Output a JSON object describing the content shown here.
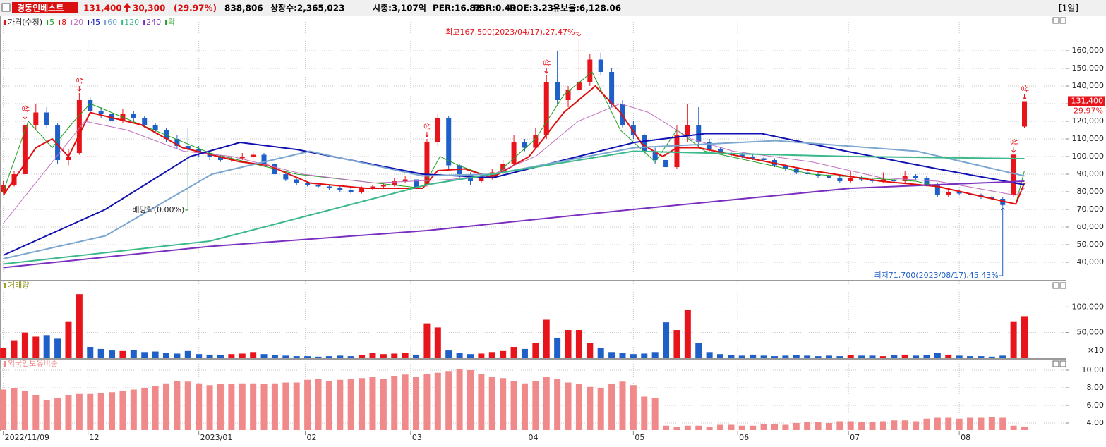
{
  "header": {
    "name": "경동인베스트",
    "price": "131,400",
    "change": "30,300",
    "change_pct": "(29.97%)",
    "volume": "838,806",
    "listed": "상장수:2,365,023",
    "cap": "시총:3,107억",
    "per": "PER:16.82",
    "pbr": "PBR:0.49",
    "roe": "ROE:3.23",
    "reserve": "유보율:6,128.06",
    "period": "[1일]"
  },
  "chart_data": [
    {
      "type": "candlestick",
      "legend_label": "가격(수정)",
      "ex_dividend_label": "락",
      "up_color": "#e8141c",
      "down_color": "#1f5fc8",
      "xlim": [
        -0.3,
        97.8
      ],
      "xticks": [
        {
          "value": 0,
          "label": "2022/11/09"
        },
        {
          "value": 7.8,
          "label": "12"
        },
        {
          "value": 18,
          "label": "2023/01"
        },
        {
          "value": 27.8,
          "label": "02"
        },
        {
          "value": 37.5,
          "label": "03"
        },
        {
          "value": 48.2,
          "label": "04"
        },
        {
          "value": 58,
          "label": "05"
        },
        {
          "value": 67.6,
          "label": "06"
        },
        {
          "value": 77.8,
          "label": "07"
        },
        {
          "value": 88,
          "label": "08"
        }
      ],
      "ylim": [
        30000,
        180000
      ],
      "yticks": [
        {
          "value": 40000,
          "label": "40,000"
        },
        {
          "value": 50000,
          "label": "50,000"
        },
        {
          "value": 60000,
          "label": "60,000"
        },
        {
          "value": 70000,
          "label": "70,000"
        },
        {
          "value": 80000,
          "label": "80,000"
        },
        {
          "value": 90000,
          "label": "90,000"
        },
        {
          "value": 100000,
          "label": "100,000"
        },
        {
          "value": 110000,
          "label": "110,000"
        },
        {
          "value": 120000,
          "label": "120,000"
        },
        {
          "value": 130000,
          "label": "130,000"
        },
        {
          "value": 140000,
          "label": "140,000"
        },
        {
          "value": 150000,
          "label": "150,000"
        },
        {
          "value": 160000,
          "label": "160,000"
        }
      ],
      "grid": true,
      "ohlc": [
        [
          80000,
          86000,
          79000,
          84000
        ],
        [
          84000,
          92000,
          83000,
          90000
        ],
        [
          90000,
          120000,
          89000,
          118000
        ],
        [
          118000,
          130000,
          115000,
          125000
        ],
        [
          125000,
          128000,
          116000,
          118000
        ],
        [
          118000,
          119000,
          96000,
          98000
        ],
        [
          98000,
          104000,
          95000,
          100000
        ],
        [
          102000,
          136000,
          101000,
          132000
        ],
        [
          132000,
          134000,
          124000,
          126000
        ],
        [
          126000,
          128000,
          122000,
          124000
        ],
        [
          124000,
          125000,
          118000,
          120000
        ],
        [
          120000,
          127000,
          119000,
          124000
        ],
        [
          124000,
          126000,
          120000,
          122000
        ],
        [
          122000,
          123000,
          116000,
          118000
        ],
        [
          118000,
          119000,
          113000,
          115000
        ],
        [
          115000,
          116000,
          108000,
          110000
        ],
        [
          110000,
          112000,
          104000,
          106000
        ],
        [
          106000,
          116000,
          103000,
          104000
        ],
        [
          104000,
          106000,
          100000,
          102000
        ],
        [
          102000,
          103000,
          98000,
          100000
        ],
        [
          100000,
          101000,
          97000,
          98000
        ],
        [
          98000,
          100000,
          97000,
          99000
        ],
        [
          99000,
          102000,
          98000,
          100000
        ],
        [
          100000,
          103000,
          99000,
          101000
        ],
        [
          101000,
          102000,
          95000,
          96000
        ],
        [
          96000,
          97000,
          89000,
          90000
        ],
        [
          90000,
          91000,
          86000,
          87000
        ],
        [
          87000,
          88000,
          84000,
          85000
        ],
        [
          85000,
          86000,
          83000,
          84000
        ],
        [
          84000,
          85000,
          82000,
          83000
        ],
        [
          83000,
          84000,
          81000,
          82000
        ],
        [
          82000,
          83000,
          80000,
          81000
        ],
        [
          81000,
          82000,
          79000,
          80000
        ],
        [
          80000,
          83000,
          79000,
          82000
        ],
        [
          82000,
          84000,
          81000,
          83000
        ],
        [
          83000,
          85000,
          82000,
          84000
        ],
        [
          84000,
          88000,
          83000,
          86000
        ],
        [
          86000,
          89000,
          85000,
          87000
        ],
        [
          87000,
          88000,
          81000,
          82000
        ],
        [
          84000,
          110000,
          83000,
          108000
        ],
        [
          108000,
          124000,
          106000,
          122000
        ],
        [
          122000,
          123000,
          93000,
          95000
        ],
        [
          95000,
          96000,
          88000,
          90000
        ],
        [
          90000,
          91000,
          84000,
          86000
        ],
        [
          86000,
          90000,
          85000,
          88000
        ],
        [
          88000,
          93000,
          87000,
          91000
        ],
        [
          91000,
          98000,
          90000,
          96000
        ],
        [
          96000,
          112000,
          95000,
          108000
        ],
        [
          108000,
          110000,
          103000,
          105000
        ],
        [
          105000,
          116000,
          104000,
          112000
        ],
        [
          112000,
          146000,
          110000,
          142000
        ],
        [
          142000,
          160000,
          130000,
          132000
        ],
        [
          132000,
          140000,
          128000,
          138000
        ],
        [
          138000,
          167500,
          136000,
          142000
        ],
        [
          142000,
          158000,
          140000,
          155000
        ],
        [
          155000,
          159000,
          146000,
          148000
        ],
        [
          148000,
          150000,
          128000,
          130000
        ],
        [
          130000,
          132000,
          116000,
          118000
        ],
        [
          118000,
          120000,
          110000,
          112000
        ],
        [
          112000,
          113000,
          101000,
          103000
        ],
        [
          103000,
          105000,
          96000,
          98000
        ],
        [
          98000,
          100000,
          92000,
          94000
        ],
        [
          94000,
          118000,
          93000,
          112000
        ],
        [
          112000,
          130000,
          108000,
          118000
        ],
        [
          118000,
          128000,
          106000,
          108000
        ],
        [
          108000,
          110000,
          103000,
          104000
        ],
        [
          104000,
          105000,
          101000,
          102000
        ],
        [
          102000,
          103000,
          100000,
          101000
        ],
        [
          101000,
          102000,
          99000,
          100000
        ],
        [
          100000,
          101000,
          98000,
          99000
        ],
        [
          99000,
          100000,
          97000,
          98000
        ],
        [
          98000,
          99000,
          94000,
          95000
        ],
        [
          95000,
          96000,
          92000,
          93000
        ],
        [
          93000,
          94000,
          90000,
          91000
        ],
        [
          91000,
          92000,
          89000,
          90000
        ],
        [
          90000,
          91000,
          88000,
          89000
        ],
        [
          89000,
          90000,
          87000,
          88000
        ],
        [
          88000,
          89000,
          85000,
          86000
        ],
        [
          86000,
          92000,
          85000,
          88000
        ],
        [
          88000,
          89000,
          86000,
          87000
        ],
        [
          87000,
          88000,
          85000,
          86000
        ],
        [
          86000,
          91000,
          85000,
          87000
        ],
        [
          87000,
          88000,
          85000,
          86000
        ],
        [
          86000,
          92000,
          85000,
          89000
        ],
        [
          89000,
          90000,
          87000,
          88000
        ],
        [
          88000,
          89000,
          83000,
          84000
        ],
        [
          84000,
          85000,
          77000,
          78000
        ],
        [
          78000,
          81000,
          77000,
          80000
        ],
        [
          80000,
          81000,
          78000,
          79000
        ],
        [
          79000,
          80000,
          77000,
          78000
        ],
        [
          78000,
          79000,
          76000,
          77000
        ],
        [
          77000,
          78000,
          75000,
          76000
        ],
        [
          76000,
          77000,
          71700,
          72500
        ],
        [
          78000,
          101100,
          77000,
          101100
        ],
        [
          117000,
          131400,
          116000,
          131400
        ]
      ],
      "series": [
        {
          "name": "5",
          "color": "#1fa01f",
          "width": 1,
          "x": [
            0,
            2.3,
            4.5,
            6.5,
            8,
            12.7,
            19,
            27,
            38.6,
            40.2,
            41.9,
            45,
            49,
            51.6,
            54.2,
            56.8,
            60,
            62,
            64.6,
            74.4,
            84,
            93.2,
            94
          ],
          "values": [
            80000,
            120000,
            105000,
            120000,
            130000,
            118000,
            102000,
            90000,
            82000,
            100000,
            95000,
            88000,
            110000,
            135000,
            148000,
            115000,
            97000,
            115000,
            103000,
            90000,
            86000,
            73000,
            92000
          ]
        },
        {
          "name": "8",
          "color": "#e01010",
          "width": 2,
          "x": [
            0,
            3,
            4.5,
            6,
            8,
            12.7,
            16.5,
            21.8,
            24.4,
            28.2,
            33.4,
            38.6,
            40,
            42.5,
            45,
            48.4,
            49.7,
            51.6,
            54.5,
            56.8,
            58.8,
            60.7,
            62,
            64,
            67.9,
            74.4,
            80.8,
            86,
            93.2,
            94
          ],
          "values": [
            78000,
            105000,
            110000,
            100000,
            125000,
            118000,
            105000,
            97000,
            95000,
            85000,
            82000,
            82000,
            92000,
            93000,
            88000,
            100000,
            110000,
            125000,
            140000,
            125000,
            107000,
            100000,
            105000,
            105000,
            100000,
            92000,
            86000,
            83000,
            73000,
            85000
          ]
        },
        {
          "name": "20",
          "color": "#c070c0",
          "width": 1,
          "x": [
            0,
            7.5,
            11.4,
            16.6,
            21.1,
            27.6,
            34.1,
            41.2,
            45.1,
            49,
            52.9,
            56.8,
            59.4,
            63.3,
            67.2,
            74.4,
            80.8,
            86,
            93.2,
            94
          ],
          "values": [
            62000,
            120000,
            115000,
            103000,
            100000,
            90000,
            85000,
            87000,
            90000,
            100000,
            120000,
            130000,
            125000,
            110000,
            103000,
            97000,
            88000,
            86000,
            78000,
            82000
          ]
        },
        {
          "name": "45",
          "color": "#1010b0",
          "width": 2,
          "x": [
            0,
            9.4,
            17.2,
            21.8,
            27,
            38.6,
            45.1,
            58.1,
            64.6,
            69.8,
            77.6,
            86,
            94
          ],
          "values": [
            44000,
            70000,
            100000,
            108000,
            104000,
            90000,
            88000,
            108000,
            113000,
            113000,
            103000,
            93000,
            84000
          ]
        },
        {
          "name": "60",
          "color": "#7aa6d0",
          "width": 2,
          "x": [
            0,
            9.4,
            19.2,
            28.2,
            38.6,
            45.1,
            58.1,
            71.1,
            84.1,
            94
          ],
          "values": [
            42000,
            55000,
            90000,
            103000,
            89000,
            90000,
            105000,
            109000,
            103000,
            89000
          ]
        },
        {
          "name": "120",
          "color": "#3cb98a",
          "width": 2,
          "x": [
            0,
            19,
            39,
            58,
            78,
            94
          ],
          "values": [
            39000,
            52000,
            84000,
            103000,
            100000,
            98800
          ]
        },
        {
          "name": "240",
          "color": "#7b2fbf",
          "width": 2,
          "x": [
            0,
            19,
            39,
            58,
            78,
            94
          ],
          "values": [
            37000,
            49000,
            58000,
            70000,
            82000,
            86000
          ]
        }
      ],
      "limit_up": {
        "label": "상",
        "x": [
          2,
          7,
          39,
          50,
          93,
          94
        ]
      },
      "high_note": {
        "label": "최고167,500(2023/04/17),27.47%",
        "x": 53
      },
      "low_note": {
        "label": "최저71,700(2023/08/17),45.43%",
        "x": 92
      },
      "ex_dividend": {
        "label": "배당락(0.00%)",
        "x": 17
      },
      "price_tag": {
        "pct": "29.97%"
      }
    },
    {
      "type": "bar",
      "title": "거래량",
      "ylim": [
        0,
        150000
      ],
      "yticks": [
        {
          "value": 50000,
          "label": "50,000"
        },
        {
          "value": 100000,
          "label": "100,000"
        }
      ],
      "unit_label": "×10",
      "values": [
        20000,
        35000,
        50000,
        42000,
        45000,
        38000,
        72000,
        125000,
        22000,
        18000,
        15000,
        14000,
        16000,
        12000,
        13000,
        10000,
        9000,
        14000,
        8000,
        7000,
        6000,
        8000,
        9000,
        12000,
        8000,
        6000,
        5000,
        4000,
        4000,
        3000,
        4000,
        5000,
        4000,
        6000,
        10000,
        8000,
        9000,
        11000,
        7000,
        68000,
        60000,
        15000,
        10000,
        8000,
        9000,
        12000,
        14000,
        22000,
        18000,
        30000,
        75000,
        40000,
        55000,
        55000,
        30000,
        20000,
        12000,
        10000,
        8000,
        9000,
        12000,
        70000,
        55000,
        95000,
        30000,
        12000,
        8000,
        6000,
        5000,
        7000,
        5000,
        4000,
        5000,
        6000,
        5000,
        4000,
        5000,
        4000,
        6000,
        5000,
        5000,
        4000,
        6000,
        7000,
        5000,
        6000,
        10000,
        7000,
        5000,
        4000,
        4000,
        3000,
        5000,
        72000,
        82000
      ]
    },
    {
      "type": "bar",
      "title": "외국인보유비중",
      "color": "#f08a8a",
      "ylim": [
        3.2,
        11.2
      ],
      "yticks": [
        {
          "value": 4,
          "label": "4.00"
        },
        {
          "value": 6,
          "label": "6.00"
        },
        {
          "value": 8,
          "label": "8.00"
        },
        {
          "value": 10,
          "label": "10.00"
        }
      ],
      "values": [
        7.8,
        8.0,
        7.6,
        7.2,
        6.6,
        6.8,
        7.2,
        7.3,
        7.3,
        7.4,
        7.5,
        7.6,
        7.8,
        8.0,
        8.2,
        8.5,
        8.8,
        8.7,
        8.5,
        8.3,
        8.4,
        8.4,
        8.5,
        8.5,
        8.4,
        8.5,
        8.6,
        8.6,
        8.9,
        9.0,
        8.8,
        8.9,
        9.0,
        9.1,
        9.2,
        9.0,
        9.3,
        9.5,
        9.2,
        9.6,
        9.7,
        9.9,
        10.1,
        10.0,
        9.6,
        9.2,
        9.1,
        8.8,
        8.5,
        8.8,
        9.2,
        9.0,
        8.6,
        8.4,
        8.1,
        8.0,
        8.4,
        8.7,
        8.3,
        7.0,
        6.8,
        3.7,
        3.6,
        3.7,
        3.7,
        3.6,
        3.8,
        3.8,
        3.7,
        3.7,
        3.9,
        3.9,
        3.8,
        4.0,
        4.1,
        4.1,
        4.0,
        4.2,
        4.2,
        4.1,
        4.1,
        4.2,
        4.3,
        4.3,
        4.2,
        4.5,
        4.6,
        4.6,
        4.5,
        4.6,
        4.6,
        4.7,
        4.6,
        3.7,
        3.6
      ]
    }
  ]
}
